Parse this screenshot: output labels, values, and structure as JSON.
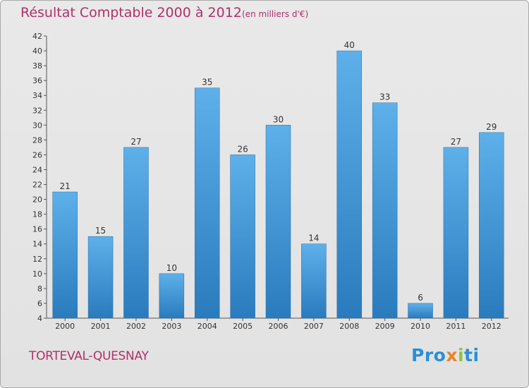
{
  "header": {
    "title": "Résultat Comptable 2000 à 2012",
    "subtitle": "(en milliers d'€)"
  },
  "footer": {
    "commune": "TORTEVAL-QUESNAY",
    "logo_text": "Proxiti"
  },
  "colors": {
    "title": "#b0306a",
    "bar_top": "#5eb0ea",
    "bar_bottom": "#2a7bbd",
    "background": "#e6e6e6"
  },
  "chart_data": {
    "type": "bar",
    "title": "Résultat Comptable 2000 à 2012",
    "subtitle": "(en milliers d'€)",
    "categories": [
      "2000",
      "2001",
      "2002",
      "2003",
      "2004",
      "2005",
      "2006",
      "2007",
      "2008",
      "2009",
      "2010",
      "2011",
      "2012"
    ],
    "values": [
      21,
      15,
      27,
      10,
      35,
      26,
      30,
      14,
      40,
      33,
      6,
      27,
      29
    ],
    "ylim": [
      4,
      42
    ],
    "yticks": [
      4,
      6,
      8,
      10,
      12,
      14,
      16,
      18,
      20,
      22,
      24,
      26,
      28,
      30,
      32,
      34,
      36,
      38,
      40,
      42
    ],
    "grid": false,
    "data_labels": true
  }
}
